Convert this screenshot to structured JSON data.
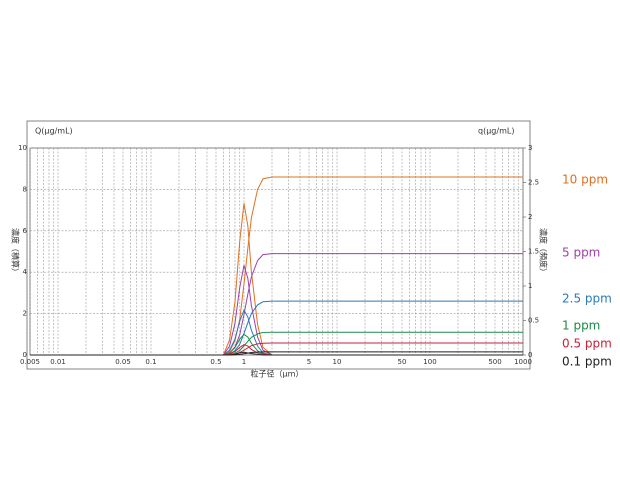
{
  "chart_data": {
    "type": "line",
    "y_title": "Q(μg/mL)",
    "y2_title": "q(μg/mL)",
    "ylabel": "濃度（積算）",
    "y2label": "濃度（頻度）",
    "xlabel": "粒子径（μm）",
    "xscale": "log",
    "grid": true,
    "x": [
      0.005,
      0.6,
      0.7,
      0.8,
      0.9,
      1.0,
      1.1,
      1.2,
      1.4,
      1.6,
      2,
      1000
    ],
    "xlim": [
      0.005,
      1000
    ],
    "xticks": [
      0.005,
      0.01,
      0.05,
      0.1,
      0.5,
      1,
      5,
      10,
      50,
      100,
      500,
      1000
    ],
    "xgrid": [
      0.005,
      0.006,
      0.007,
      0.008,
      0.009,
      0.01,
      0.02,
      0.03,
      0.04,
      0.05,
      0.06,
      0.07,
      0.08,
      0.09,
      0.1,
      0.2,
      0.3,
      0.4,
      0.5,
      0.6,
      0.7,
      0.8,
      0.9,
      1,
      2,
      3,
      4,
      5,
      6,
      7,
      8,
      9,
      10,
      20,
      30,
      40,
      50,
      60,
      70,
      80,
      90,
      100,
      200,
      300,
      400,
      500,
      600,
      700,
      800,
      900,
      1000
    ],
    "ylim": [
      0,
      10
    ],
    "yticks": [
      0,
      2,
      4,
      6,
      8,
      10
    ],
    "y2lim": [
      0,
      3
    ],
    "y2ticks": [
      0,
      0.5,
      1,
      1.5,
      2,
      2.5,
      3
    ],
    "series": [
      {
        "name": "10 ppm",
        "color": "#e07020",
        "values": [
          0,
          0,
          0.17,
          0.69,
          1.72,
          3.44,
          5.16,
          6.62,
          8.0,
          8.51,
          8.6,
          8.6
        ],
        "frequency": [
          0,
          0,
          0.22,
          0.77,
          1.65,
          2.2,
          1.87,
          1.21,
          0.44,
          0.11,
          0,
          0
        ]
      },
      {
        "name": "5 ppm",
        "color": "#a040a8",
        "values": [
          0,
          0,
          0.1,
          0.39,
          0.98,
          1.96,
          2.94,
          3.77,
          4.56,
          4.85,
          4.9,
          4.9
        ],
        "frequency": [
          0,
          0,
          0.13,
          0.46,
          0.98,
          1.3,
          1.11,
          0.72,
          0.26,
          0.07,
          0,
          0
        ]
      },
      {
        "name": "2.5 ppm",
        "color": "#2a7ab8",
        "values": [
          0,
          0,
          0.05,
          0.21,
          0.52,
          1.04,
          1.56,
          2.0,
          2.42,
          2.57,
          2.6,
          2.6
        ],
        "frequency": [
          0,
          0,
          0.07,
          0.23,
          0.49,
          0.65,
          0.55,
          0.36,
          0.13,
          0.03,
          0,
          0
        ]
      },
      {
        "name": "1 ppm",
        "color": "#1a8a48",
        "values": [
          0,
          0,
          0.02,
          0.09,
          0.22,
          0.44,
          0.66,
          0.85,
          1.02,
          1.09,
          1.1,
          1.1
        ],
        "frequency": [
          0,
          0,
          0.03,
          0.11,
          0.23,
          0.3,
          0.26,
          0.17,
          0.06,
          0.02,
          0,
          0
        ]
      },
      {
        "name": "0.5 ppm",
        "color": "#c82038",
        "values": [
          0,
          0,
          0.01,
          0.05,
          0.12,
          0.23,
          0.35,
          0.45,
          0.54,
          0.57,
          0.58,
          0.58
        ],
        "frequency": [
          0,
          0,
          0.02,
          0.05,
          0.11,
          0.15,
          0.13,
          0.08,
          0.03,
          0.01,
          0,
          0
        ]
      },
      {
        "name": "0.1 ppm",
        "color": "#222222",
        "values": [
          0,
          0,
          0,
          0.01,
          0.03,
          0.06,
          0.09,
          0.12,
          0.14,
          0.15,
          0.15,
          0.15
        ],
        "frequency": [
          0,
          0,
          0,
          0.01,
          0.03,
          0.04,
          0.03,
          0.02,
          0.01,
          0,
          0,
          0
        ]
      }
    ]
  }
}
